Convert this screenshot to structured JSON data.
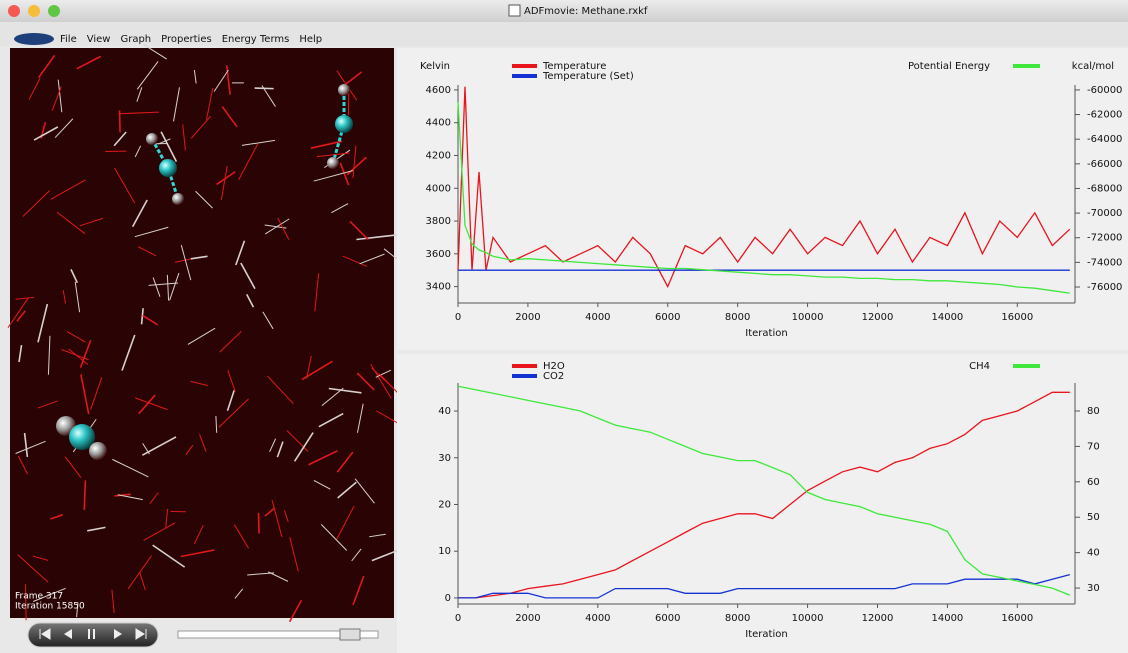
{
  "window": {
    "title": "ADFmovie: Methane.rxkf"
  },
  "menu": [
    "File",
    "View",
    "Graph",
    "Properties",
    "Energy Terms",
    "Help"
  ],
  "viewer": {
    "frame": "Frame 317",
    "iteration": "Iteration 15850"
  },
  "chart_data": [
    {
      "type": "line",
      "y_label": "Kelvin",
      "y2_label": "kcal/mol",
      "x_label": "Iteration",
      "x": [
        0,
        200,
        400,
        600,
        800,
        1000,
        1500,
        2000,
        2500,
        3000,
        3500,
        4000,
        4500,
        5000,
        5500,
        6000,
        6500,
        7000,
        7500,
        8000,
        8500,
        9000,
        9500,
        10000,
        10500,
        11000,
        11500,
        12000,
        12500,
        13000,
        13500,
        14000,
        14500,
        15000,
        15500,
        16000,
        16500,
        17000,
        17500
      ],
      "xlim": [
        0,
        17650
      ],
      "xticks": [
        0,
        2000,
        4000,
        6000,
        8000,
        10000,
        12000,
        14000,
        16000
      ],
      "ylim": [
        3300,
        4630
      ],
      "yticks": [
        3400,
        3600,
        3800,
        4000,
        4200,
        4400,
        4600
      ],
      "y2lim": [
        -77300,
        -59600
      ],
      "y2ticks": [
        -76000,
        -74000,
        -72000,
        -70000,
        -68000,
        -66000,
        -64000,
        -62000,
        -60000
      ],
      "series": [
        {
          "name": "Temperature",
          "color": "#e8141e",
          "legend": "left",
          "values": [
            3500,
            4620,
            3500,
            4100,
            3500,
            3700,
            3550,
            3600,
            3650,
            3550,
            3600,
            3650,
            3550,
            3700,
            3600,
            3400,
            3650,
            3600,
            3700,
            3550,
            3700,
            3600,
            3750,
            3600,
            3700,
            3650,
            3800,
            3600,
            3750,
            3550,
            3700,
            3650,
            3850,
            3600,
            3800,
            3700,
            3850,
            3650,
            3750
          ]
        },
        {
          "name": "Temperature (Set)",
          "color": "#1432d2",
          "legend": "left",
          "values": [
            3500,
            3500,
            3500,
            3500,
            3500,
            3500,
            3500,
            3500,
            3500,
            3500,
            3500,
            3500,
            3500,
            3500,
            3500,
            3500,
            3500,
            3500,
            3500,
            3500,
            3500,
            3500,
            3500,
            3500,
            3500,
            3500,
            3500,
            3500,
            3500,
            3500,
            3500,
            3500,
            3500,
            3500,
            3500,
            3500,
            3500,
            3500,
            3500
          ]
        },
        {
          "name": "Potential Energy",
          "color": "#3ee83a",
          "axis": "y2",
          "legend": "right",
          "values": [
            -61000,
            -71000,
            -72500,
            -73000,
            -73200,
            -73500,
            -73800,
            -73700,
            -73800,
            -73900,
            -74000,
            -74100,
            -74200,
            -74300,
            -74400,
            -74500,
            -74500,
            -74600,
            -74700,
            -74800,
            -74900,
            -75000,
            -75000,
            -75100,
            -75200,
            -75200,
            -75300,
            -75300,
            -75400,
            -75400,
            -75500,
            -75500,
            -75600,
            -75700,
            -75800,
            -76000,
            -76100,
            -76300,
            -76500
          ]
        }
      ]
    },
    {
      "type": "line",
      "x_label": "Iteration",
      "x": [
        0,
        500,
        1000,
        1500,
        2000,
        2500,
        3000,
        3500,
        4000,
        4500,
        5000,
        5500,
        6000,
        6500,
        7000,
        7500,
        8000,
        8500,
        9000,
        9500,
        10000,
        10500,
        11000,
        11500,
        12000,
        12500,
        13000,
        13500,
        14000,
        14500,
        15000,
        15500,
        16000,
        16500,
        17000,
        17500
      ],
      "xlim": [
        0,
        17650
      ],
      "xticks": [
        0,
        2000,
        4000,
        6000,
        8000,
        10000,
        12000,
        14000,
        16000
      ],
      "ylim": [
        -1.3,
        46
      ],
      "yticks": [
        0,
        10,
        20,
        30,
        40
      ],
      "y2lim": [
        25.5,
        87.9
      ],
      "y2ticks": [
        30,
        40,
        50,
        60,
        70,
        80
      ],
      "series": [
        {
          "name": "H2O",
          "color": "#e8141e",
          "legend": "left",
          "values": [
            0,
            0,
            0.5,
            1,
            2,
            2.5,
            3,
            4,
            5,
            6,
            8,
            10,
            12,
            14,
            16,
            17,
            18,
            18,
            17,
            20,
            23,
            25,
            27,
            28,
            27,
            29,
            30,
            32,
            33,
            35,
            38,
            39,
            40,
            42,
            44,
            44
          ]
        },
        {
          "name": "CO2",
          "color": "#1432d2",
          "legend": "left",
          "values": [
            0,
            0,
            1,
            1,
            1,
            0,
            0,
            0,
            0,
            2,
            2,
            2,
            2,
            1,
            1,
            1,
            2,
            2,
            2,
            2,
            2,
            2,
            2,
            2,
            2,
            2,
            3,
            3,
            3,
            4,
            4,
            4,
            4,
            3,
            4,
            5
          ]
        },
        {
          "name": "CH4",
          "color": "#3ee83a",
          "axis": "y2",
          "legend": "right",
          "values": [
            87,
            86,
            85,
            84,
            83,
            82,
            81,
            80,
            78,
            76,
            75,
            74,
            72,
            70,
            68,
            67,
            66,
            66,
            64,
            62,
            57,
            55,
            54,
            53,
            51,
            50,
            49,
            48,
            46,
            38,
            34,
            33,
            32,
            31,
            30,
            28
          ]
        }
      ]
    }
  ]
}
